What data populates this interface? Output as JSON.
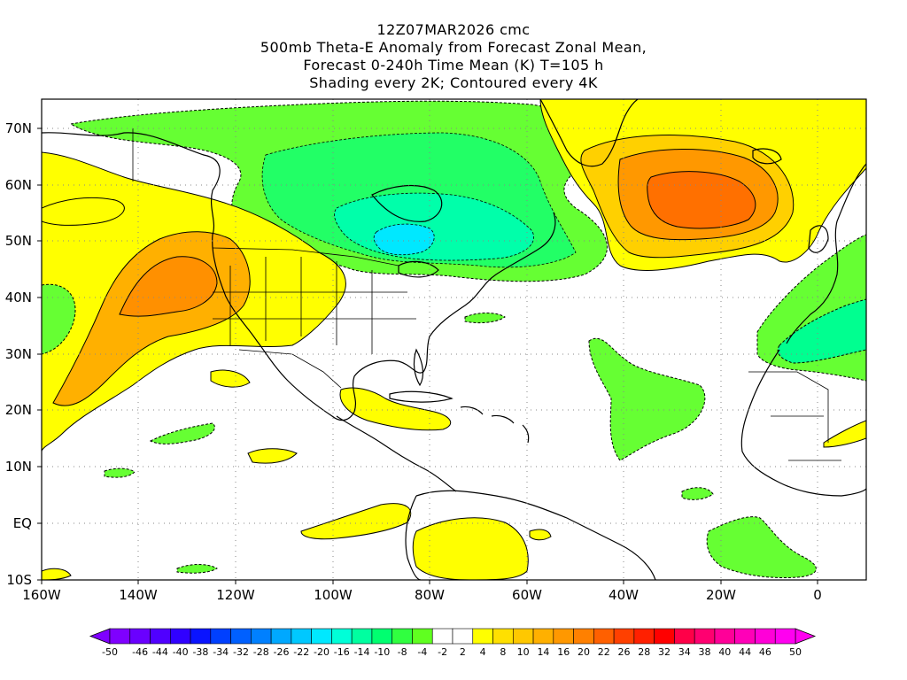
{
  "header": {
    "line1": "12Z07MAR2026 cmc",
    "line2": "500mb Theta-E Anomaly from Forecast Zonal Mean,",
    "line3": "Forecast 0-240h Time Mean (K) T=105 h",
    "line4": "Shading every 2K; Contoured every 4K"
  },
  "map": {
    "lon_range": [
      -160,
      10
    ],
    "lat_range": [
      -10,
      75
    ],
    "lat_ticks": [
      "70N",
      "60N",
      "50N",
      "40N",
      "30N",
      "20N",
      "10N",
      "EQ",
      "10S"
    ],
    "lon_ticks": [
      "160W",
      "140W",
      "120W",
      "100W",
      "80W",
      "60W",
      "40W",
      "20W",
      "0"
    ],
    "grid": "dotted",
    "features": [
      {
        "name": "cold-anomaly-canada",
        "kind": "negative",
        "center_lon": -88,
        "center_lat": 50,
        "peak_k": -22
      },
      {
        "name": "warm-anomaly-north-atlantic",
        "kind": "positive",
        "center_lon": -28,
        "center_lat": 58,
        "peak_k": 24
      },
      {
        "name": "warm-anomaly-western-us-pacific",
        "kind": "positive",
        "center_lon": -130,
        "center_lat": 40,
        "peak_k": 14
      },
      {
        "name": "cold-anomaly-west-europe",
        "kind": "negative",
        "center_lon": -3,
        "center_lat": 38,
        "peak_k": -14
      },
      {
        "name": "cold-anomaly-central-atlantic",
        "kind": "negative",
        "center_lon": -37,
        "center_lat": 24,
        "peak_k": -8
      }
    ]
  },
  "colorbar": {
    "labels": [
      "-50",
      "-46",
      "-44",
      "-40",
      "-38",
      "-34",
      "-32",
      "-28",
      "-26",
      "-22",
      "-20",
      "-16",
      "-14",
      "-10",
      "-8",
      "-4",
      "-2",
      "2",
      "4",
      "8",
      "10",
      "14",
      "16",
      "20",
      "22",
      "26",
      "28",
      "32",
      "34",
      "38",
      "40",
      "44",
      "46",
      "50"
    ],
    "colors": [
      "#7f00ff",
      "#6a00ff",
      "#5000ff",
      "#3000ff",
      "#0a14ff",
      "#0040ff",
      "#0060ff",
      "#0080ff",
      "#00a8ff",
      "#00c8ff",
      "#00e8ff",
      "#00ffd8",
      "#00ffa0",
      "#00ff70",
      "#30ff40",
      "#60ff20",
      "#ffffff",
      "#ffffff",
      "#ffff00",
      "#ffe000",
      "#ffc800",
      "#ffb000",
      "#ff9800",
      "#ff8000",
      "#ff6000",
      "#ff4000",
      "#ff2000",
      "#ff0000",
      "#ff0048",
      "#ff0070",
      "#ff0098",
      "#ff00b8",
      "#ff00d8",
      "#ff00f0"
    ]
  }
}
